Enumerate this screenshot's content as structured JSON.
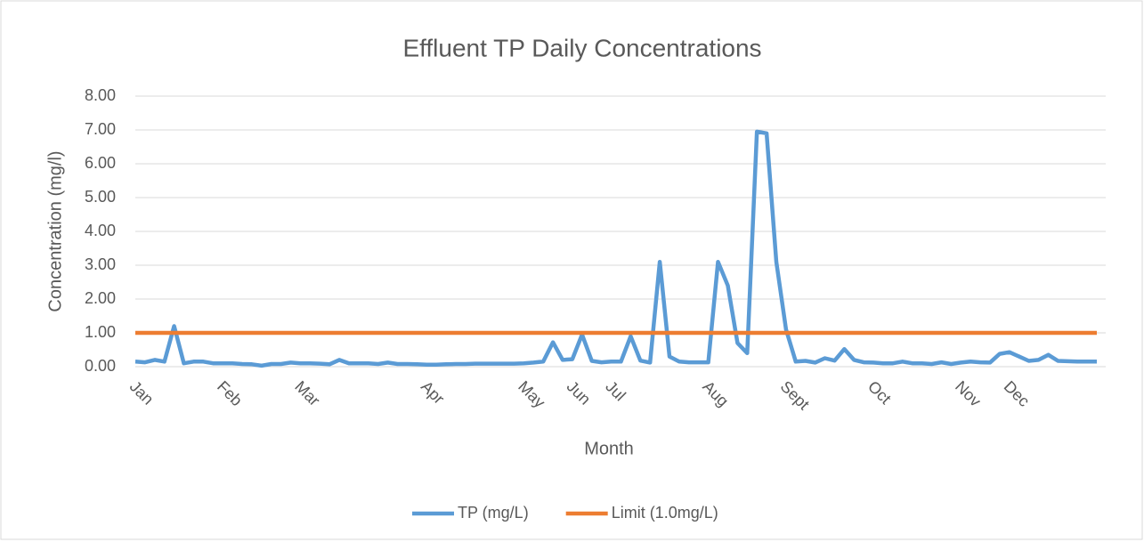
{
  "chart_data": {
    "type": "line",
    "title": "Effluent TP Daily Concentrations",
    "x_label": "Month",
    "y_label": "Concentration (mg/l)",
    "categories": [
      "Jan",
      null,
      null,
      null,
      null,
      null,
      null,
      null,
      null,
      "Feb",
      null,
      null,
      null,
      null,
      null,
      null,
      null,
      "Mar",
      null,
      null,
      null,
      null,
      null,
      null,
      null,
      null,
      null,
      null,
      null,
      null,
      "Apr",
      null,
      null,
      null,
      null,
      null,
      null,
      null,
      null,
      null,
      "May",
      null,
      null,
      null,
      null,
      "Jun",
      null,
      null,
      null,
      "Jul",
      null,
      null,
      null,
      null,
      null,
      null,
      null,
      null,
      null,
      "Aug",
      null,
      null,
      null,
      null,
      null,
      null,
      null,
      "Sept",
      null,
      null,
      null,
      null,
      null,
      null,
      null,
      null,
      "Oct",
      null,
      null,
      null,
      null,
      null,
      null,
      null,
      null,
      "Nov",
      null,
      null,
      null,
      null,
      "Dec",
      null,
      null,
      null,
      null,
      null,
      null,
      null,
      null,
      null
    ],
    "series": [
      {
        "name": "TP (mg/L)",
        "color": "#5b9bd5",
        "values": [
          0.15,
          0.13,
          0.2,
          0.15,
          1.2,
          0.1,
          0.15,
          0.15,
          0.1,
          0.1,
          0.1,
          0.08,
          0.07,
          0.03,
          0.08,
          0.08,
          0.12,
          0.1,
          0.1,
          0.09,
          0.07,
          0.2,
          0.1,
          0.1,
          0.1,
          0.08,
          0.12,
          0.08,
          0.08,
          0.07,
          0.06,
          0.06,
          0.07,
          0.08,
          0.08,
          0.09,
          0.09,
          0.09,
          0.09,
          0.09,
          0.1,
          0.12,
          0.15,
          0.72,
          0.2,
          0.22,
          0.95,
          0.17,
          0.13,
          0.15,
          0.15,
          0.9,
          0.18,
          0.12,
          3.1,
          0.3,
          0.15,
          0.13,
          0.13,
          0.13,
          3.1,
          2.4,
          0.7,
          0.4,
          6.95,
          6.9,
          3.1,
          1.1,
          0.15,
          0.17,
          0.12,
          0.25,
          0.18,
          0.52,
          0.2,
          0.13,
          0.12,
          0.1,
          0.1,
          0.15,
          0.1,
          0.1,
          0.08,
          0.13,
          0.08,
          0.12,
          0.15,
          0.13,
          0.12,
          0.38,
          0.43,
          0.3,
          0.17,
          0.2,
          0.35,
          0.17,
          0.16,
          0.15,
          0.15,
          0.15
        ]
      },
      {
        "name": "Limit (1.0mg/L)",
        "color": "#ed7d31",
        "values": [
          1,
          1,
          1,
          1,
          1,
          1,
          1,
          1,
          1,
          1,
          1,
          1,
          1,
          1,
          1,
          1,
          1,
          1,
          1,
          1,
          1,
          1,
          1,
          1,
          1,
          1,
          1,
          1,
          1,
          1,
          1,
          1,
          1,
          1,
          1,
          1,
          1,
          1,
          1,
          1,
          1,
          1,
          1,
          1,
          1,
          1,
          1,
          1,
          1,
          1,
          1,
          1,
          1,
          1,
          1,
          1,
          1,
          1,
          1,
          1,
          1,
          1,
          1,
          1,
          1,
          1,
          1,
          1,
          1,
          1,
          1,
          1,
          1,
          1,
          1,
          1,
          1,
          1,
          1,
          1,
          1,
          1,
          1,
          1,
          1,
          1,
          1,
          1,
          1,
          1,
          1,
          1,
          1,
          1,
          1,
          1,
          1,
          1,
          1,
          1
        ]
      }
    ],
    "ylim": [
      0,
      8
    ],
    "yticks": [
      {
        "value": 0,
        "label": "0.00"
      },
      {
        "value": 1,
        "label": "1.00"
      },
      {
        "value": 2,
        "label": "2.00"
      },
      {
        "value": 3,
        "label": "3.00"
      },
      {
        "value": 4,
        "label": "4.00"
      },
      {
        "value": 5,
        "label": "5.00"
      },
      {
        "value": 6,
        "label": "6.00"
      },
      {
        "value": 7,
        "label": "7.00"
      },
      {
        "value": 8,
        "label": "8.00"
      }
    ],
    "grid": true,
    "legend": "bottom"
  }
}
